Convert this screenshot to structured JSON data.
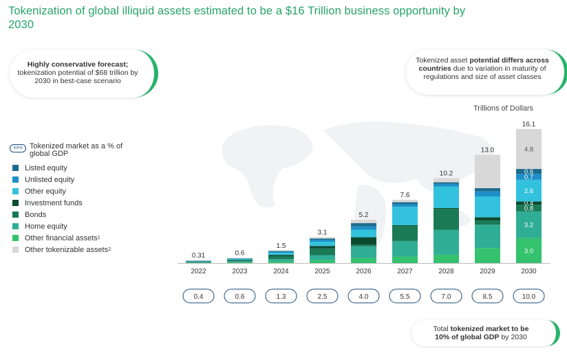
{
  "title": "Tokenization of global illiquid assets estimated to be a $16 Trillion business opportunity by 2030",
  "callouts": {
    "conservative_bold": "Highly conservative forecast;",
    "conservative_text": "tokenization potential of $68 trillion by 2030 in best-case scenario",
    "potential_pre": "Tokenized asset ",
    "potential_bold": "potential differs across countries",
    "potential_post": " due to variation in maturity of regulations and size of asset classes",
    "total_pre": "Total ",
    "total_bold1": "tokenized market to be",
    "total_bold2": "10% of global GDP",
    "total_post": " by 2030"
  },
  "unit_label": "Trillions of Dollars",
  "gdp_legend": {
    "chip": "XX%",
    "label": "Tokenized market as a % of global GDP"
  },
  "colors": {
    "Listed equity": "#1b6d8f",
    "Unlisted equity": "#1e8fc8",
    "Other equity": "#33c2dd",
    "Investment funds": "#0c4a30",
    "Bonds": "#1a7a56",
    "Home equity": "#2fae95",
    "Other financial assets": "#34c26e",
    "Other tokenizable assets": "#d8d8d8"
  },
  "chart_data": {
    "type": "bar",
    "stacked": true,
    "categories": [
      "2022",
      "2023",
      "2024",
      "2025",
      "2026",
      "2027",
      "2028",
      "2029",
      "2030"
    ],
    "totals": [
      "0.31",
      "0.6",
      "1.5",
      "3.1",
      "5.2",
      "7.6",
      "10.2",
      "13.0",
      "16.1"
    ],
    "gdp_pct": [
      "0.4",
      "0.6",
      "1.3",
      "2.5",
      "4.0",
      "5.5",
      "7.0",
      "8.5",
      "10.0"
    ],
    "series": [
      {
        "name": "Other financial assets",
        "values": [
          0.05,
          0.1,
          0.2,
          0.35,
          0.6,
          0.75,
          1.0,
          1.8,
          3.0
        ]
      },
      {
        "name": "Home equity",
        "values": [
          0.06,
          0.1,
          0.28,
          0.6,
          1.4,
          1.9,
          3.0,
          2.8,
          3.2
        ]
      },
      {
        "name": "Bonds",
        "values": [
          0.06,
          0.15,
          0.35,
          0.8,
          0.2,
          1.8,
          2.5,
          0.5,
          0.8
        ]
      },
      {
        "name": "Investment funds",
        "values": [
          0.02,
          0.05,
          0.15,
          0.3,
          0.9,
          0.1,
          0.1,
          0.4,
          0.4
        ]
      },
      {
        "name": "Other equity",
        "values": [
          0.06,
          0.1,
          0.25,
          0.5,
          0.9,
          2.2,
          2.6,
          2.5,
          2.6
        ]
      },
      {
        "name": "Unlisted equity",
        "values": [
          0.02,
          0.04,
          0.12,
          0.25,
          0.4,
          0.3,
          0.3,
          0.6,
          0.7
        ]
      },
      {
        "name": "Listed equity",
        "values": [
          0.02,
          0.03,
          0.1,
          0.15,
          0.4,
          0.25,
          0.2,
          0.4,
          0.6
        ]
      },
      {
        "name": "Other tokenizable assets",
        "values": [
          0.02,
          0.03,
          0.05,
          0.15,
          0.4,
          0.3,
          0.5,
          4.0,
          4.8
        ]
      }
    ],
    "segment_labels_2030": [
      "3.0",
      "3.2",
      "0.8",
      "0.4",
      "2.6",
      "0.7",
      "0.6",
      "4.8"
    ],
    "legend_order": [
      "Listed equity",
      "Unlisted equity",
      "Other equity",
      "Investment funds",
      "Bonds",
      "Home equity",
      "Other financial assets",
      "Other tokenizable assets"
    ],
    "legend_sup": {
      "Other financial assets": "1",
      "Other tokenizable assets": "2"
    },
    "ylim": [
      0,
      16.5
    ]
  }
}
